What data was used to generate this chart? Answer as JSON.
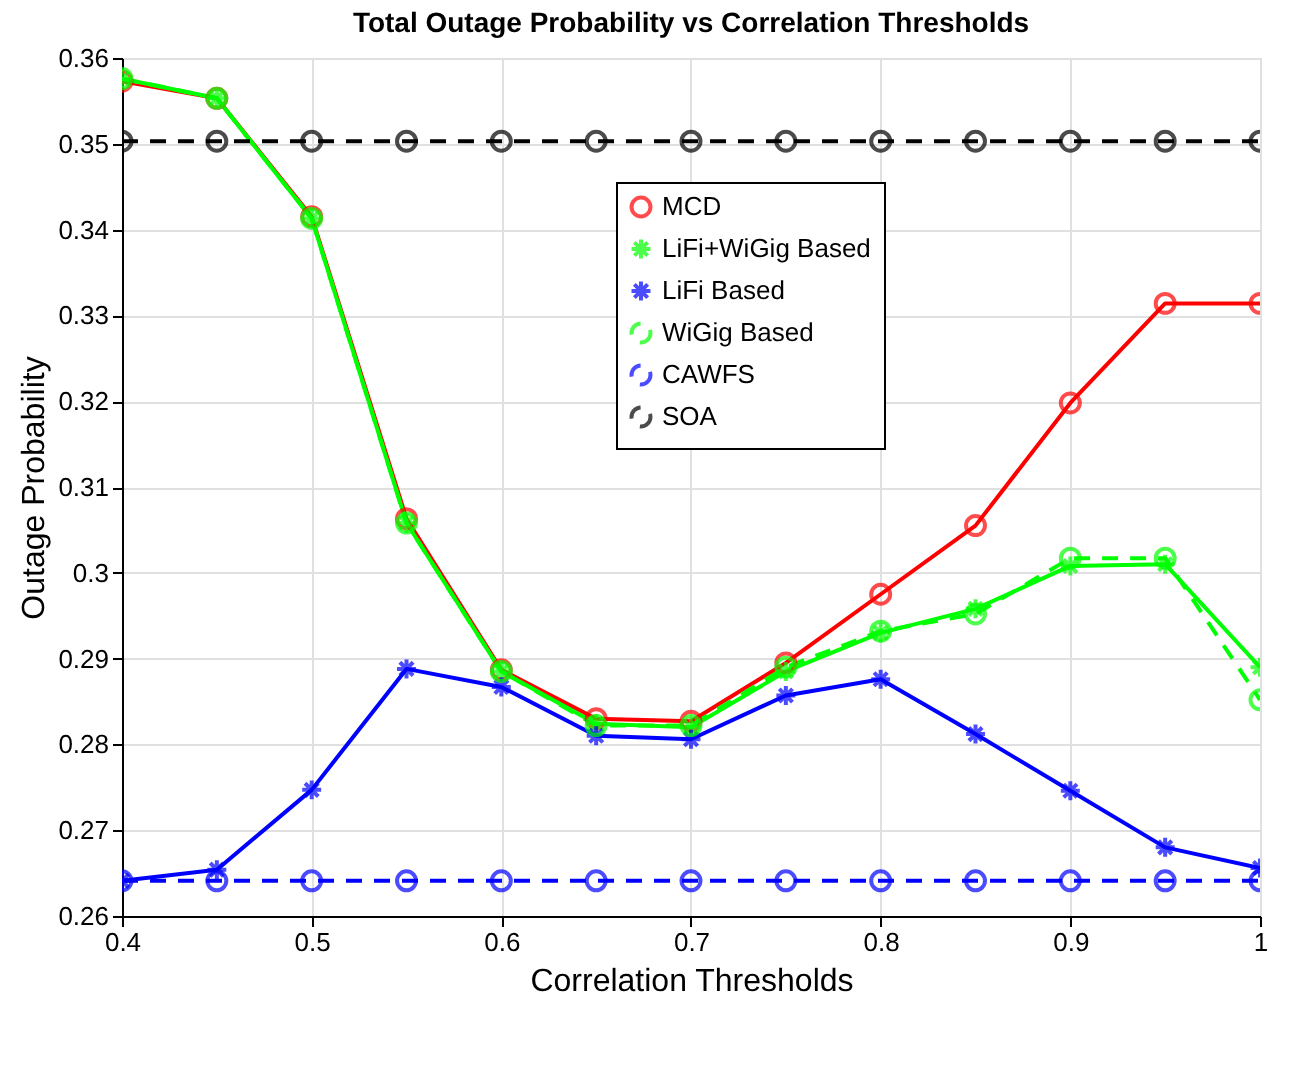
{
  "chart_data": {
    "type": "line",
    "title": "Total Outage Probability vs Correlation Thresholds",
    "xlabel": "Correlation Thresholds",
    "ylabel": "Outage Probability",
    "x": [
      0.4,
      0.45,
      0.5,
      0.55,
      0.6,
      0.65,
      0.7,
      0.75,
      0.8,
      0.85,
      0.9,
      0.95,
      1
    ],
    "series": [
      {
        "name": "MCD",
        "color": "#ff0000",
        "marker": "circle",
        "line_style": "solid",
        "values": [
          0.3573,
          0.3553,
          0.3415,
          0.3063,
          0.2887,
          0.283,
          0.2827,
          0.2895,
          0.2975,
          0.3055,
          0.3198,
          0.3314,
          0.3314
        ]
      },
      {
        "name": "LiFi+WiGig Based",
        "color": "#00ff00",
        "marker": "cross",
        "line_style": "solid",
        "values": [
          0.3576,
          0.3553,
          0.3413,
          0.3058,
          0.2885,
          0.2824,
          0.282,
          0.2885,
          0.293,
          0.2958,
          0.3008,
          0.301,
          0.289
        ]
      },
      {
        "name": "LiFi Based",
        "color": "#0000ff",
        "marker": "cross",
        "line_style": "solid",
        "values": [
          0.2641,
          0.2654,
          0.2747,
          0.2888,
          0.2867,
          0.281,
          0.2806,
          0.2857,
          0.2876,
          0.2812,
          0.2746,
          0.268,
          0.2656
        ]
      },
      {
        "name": "WiGig Based",
        "color": "#00ff00",
        "marker": "circle",
        "line_style": "dashed",
        "values": [
          0.3576,
          0.3553,
          0.3413,
          0.3058,
          0.2885,
          0.2822,
          0.2822,
          0.289,
          0.2932,
          0.2952,
          0.3017,
          0.3017,
          0.2852
        ]
      },
      {
        "name": "CAWFS",
        "color": "#0000ff",
        "marker": "circle",
        "line_style": "dashed",
        "values": [
          0.2641,
          0.2641,
          0.2641,
          0.2641,
          0.2641,
          0.2641,
          0.2641,
          0.2641,
          0.2641,
          0.2641,
          0.2641,
          0.2641,
          0.2641
        ]
      },
      {
        "name": "SOA",
        "color": "#000000",
        "marker": "circle",
        "line_style": "dashed",
        "values": [
          0.3503,
          0.3503,
          0.3503,
          0.3503,
          0.3503,
          0.3503,
          0.3503,
          0.3503,
          0.3503,
          0.3503,
          0.3503,
          0.3503,
          0.3503
        ]
      }
    ],
    "xlim": [
      0.4,
      1
    ],
    "xticks": [
      0.4,
      0.5,
      0.6,
      0.7,
      0.8,
      0.9,
      1
    ],
    "ylim": [
      0.26,
      0.36
    ],
    "yticks": [
      0.26,
      0.27,
      0.28,
      0.29,
      0.3,
      0.31,
      0.32,
      0.33,
      0.34,
      0.35,
      0.36
    ],
    "grid": true,
    "legend": "top right"
  }
}
